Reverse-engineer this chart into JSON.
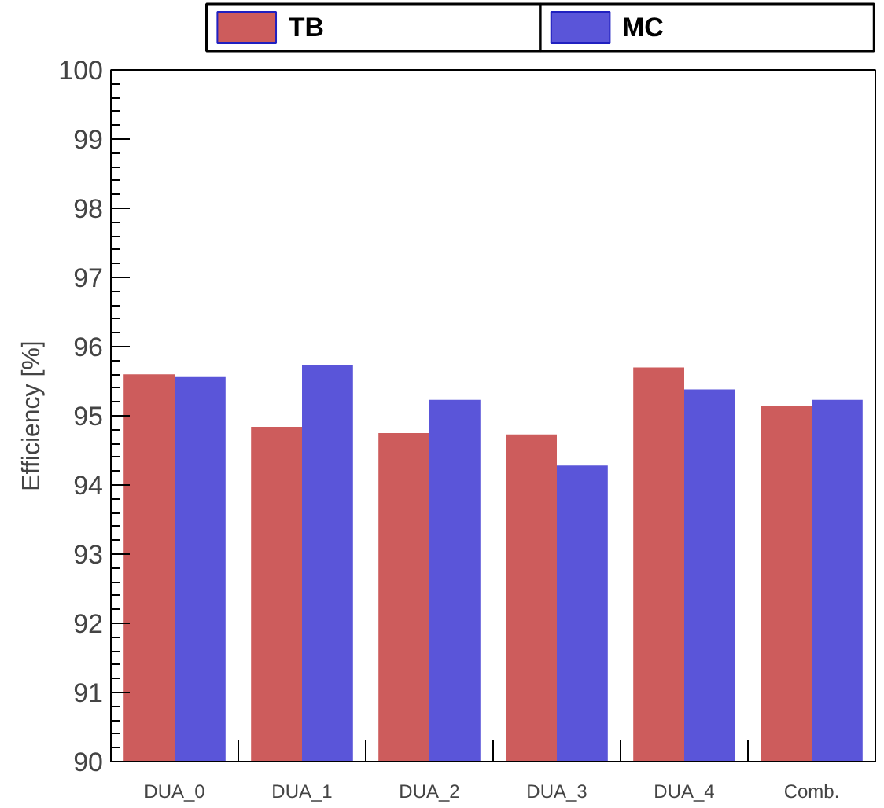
{
  "chart_data": {
    "type": "bar",
    "ylabel": "Efficiency [%]",
    "categories": [
      "DUA_0",
      "DUA_1",
      "DUA_2",
      "DUA_3",
      "DUA_4",
      "Comb."
    ],
    "series": [
      {
        "name": "TB",
        "color": "#cd5c5c",
        "values": [
          95.6,
          94.84,
          94.75,
          94.73,
          95.7,
          95.14
        ]
      },
      {
        "name": "MC",
        "color": "#5a55d9",
        "values": [
          95.56,
          95.74,
          95.23,
          94.28,
          95.38,
          95.23
        ]
      }
    ],
    "ylim": [
      90,
      100
    ],
    "yticks": [
      90,
      91,
      92,
      93,
      94,
      95,
      96,
      97,
      98,
      99,
      100
    ],
    "grid": false,
    "legend": "top"
  }
}
